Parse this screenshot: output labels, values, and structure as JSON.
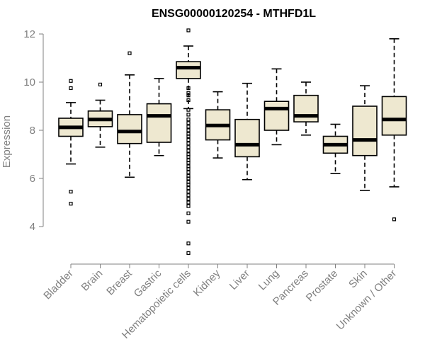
{
  "chart_data": {
    "type": "box",
    "title": "ENSG00000120254 - MTHFD1L",
    "ylabel": "Expression",
    "xlabel": "",
    "ylim": [
      3.2,
      12.1
    ],
    "yticks": [
      4,
      6,
      8,
      10,
      12
    ],
    "box_fill": "#EEE8D0",
    "categories": [
      "Bladder",
      "Brain",
      "Breast",
      "Gastric",
      "Hematopoietic cells",
      "Kidney",
      "Liver",
      "Lung",
      "Pancreas",
      "Prostate",
      "Skin",
      "Unknown / Other"
    ],
    "boxes": [
      {
        "category": "Bladder",
        "whisker_low": 6.6,
        "q1": 7.75,
        "median": 8.12,
        "q3": 8.5,
        "whisker_high": 9.15,
        "outliers": [
          10.05,
          9.75,
          5.45,
          4.95
        ]
      },
      {
        "category": "Brain",
        "whisker_low": 7.3,
        "q1": 8.15,
        "median": 8.45,
        "q3": 8.8,
        "whisker_high": 9.25,
        "outliers": [
          9.9
        ]
      },
      {
        "category": "Breast",
        "whisker_low": 6.05,
        "q1": 7.45,
        "median": 7.95,
        "q3": 8.65,
        "whisker_high": 10.3,
        "outliers": [
          11.2
        ]
      },
      {
        "category": "Gastric",
        "whisker_low": 6.95,
        "q1": 7.5,
        "median": 8.6,
        "q3": 9.1,
        "whisker_high": 10.15,
        "outliers": []
      },
      {
        "category": "Hematopoietic cells",
        "whisker_low": 8.9,
        "q1": 10.15,
        "median": 10.6,
        "q3": 10.85,
        "whisker_high": 11.5,
        "outliers": [
          12.15,
          9.75,
          9.55,
          9.45,
          9.25,
          8.85,
          8.65,
          8.45,
          8.3,
          8.15,
          8.0,
          7.85,
          7.75,
          7.6,
          7.45,
          7.3,
          7.15,
          7.0,
          6.9,
          6.75,
          6.65,
          6.5,
          6.4,
          6.25,
          6.1,
          6.0,
          5.85,
          5.75,
          5.6,
          5.45,
          5.3,
          5.15,
          5.0,
          4.85,
          4.55,
          4.2,
          3.3,
          2.9
        ]
      },
      {
        "category": "Kidney",
        "whisker_low": 6.85,
        "q1": 7.6,
        "median": 8.2,
        "q3": 8.85,
        "whisker_high": 9.6,
        "outliers": []
      },
      {
        "category": "Liver",
        "whisker_low": 5.95,
        "q1": 6.9,
        "median": 7.4,
        "q3": 8.45,
        "whisker_high": 9.95,
        "outliers": []
      },
      {
        "category": "Lung",
        "whisker_low": 7.4,
        "q1": 8.0,
        "median": 8.9,
        "q3": 9.2,
        "whisker_high": 10.55,
        "outliers": []
      },
      {
        "category": "Pancreas",
        "whisker_low": 7.8,
        "q1": 8.35,
        "median": 8.6,
        "q3": 9.45,
        "whisker_high": 10.0,
        "outliers": []
      },
      {
        "category": "Prostate",
        "whisker_low": 6.2,
        "q1": 7.05,
        "median": 7.4,
        "q3": 7.75,
        "whisker_high": 8.25,
        "outliers": []
      },
      {
        "category": "Skin",
        "whisker_low": 5.5,
        "q1": 6.95,
        "median": 7.6,
        "q3": 9.0,
        "whisker_high": 9.85,
        "outliers": []
      },
      {
        "category": "Unknown / Other",
        "whisker_low": 5.65,
        "q1": 7.8,
        "median": 8.45,
        "q3": 9.4,
        "whisker_high": 11.8,
        "outliers": [
          4.3
        ]
      }
    ]
  }
}
